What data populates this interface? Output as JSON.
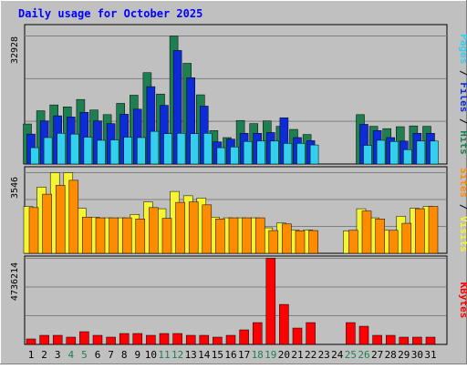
{
  "chart_data": [
    {
      "type": "bar",
      "title": "Daily usage for October 2025",
      "panel": "pages-files-hits",
      "ymax_label": "32928",
      "ylim": [
        0,
        32928
      ],
      "grid": true,
      "legend": "right-vertical",
      "categories": [
        "1",
        "2",
        "3",
        "4",
        "5",
        "6",
        "7",
        "8",
        "9",
        "10",
        "11",
        "12",
        "13",
        "14",
        "15",
        "16",
        "17",
        "18",
        "19",
        "20",
        "21",
        "22",
        "23",
        "24",
        "25",
        "26",
        "27",
        "28",
        "29",
        "30",
        "31"
      ],
      "weekend_days": [
        "4",
        "5",
        "11",
        "12",
        "18",
        "19",
        "25",
        "26"
      ],
      "series": [
        {
          "name": "Hits",
          "color": "#1e7f50",
          "values": [
            10300,
            13700,
            15200,
            14700,
            16600,
            13900,
            12700,
            15600,
            17700,
            23500,
            18000,
            32928,
            25900,
            17800,
            8600,
            6800,
            11200,
            10400,
            11100,
            9700,
            8900,
            7600,
            0,
            0,
            0,
            12700,
            9700,
            9100,
            9600,
            9800,
            9700
          ]
        },
        {
          "name": "Files",
          "color": "#0d2bd6",
          "values": [
            7700,
            11100,
            12400,
            12100,
            13300,
            11100,
            10400,
            12800,
            14100,
            19900,
            15100,
            29200,
            22200,
            14900,
            5700,
            6400,
            7900,
            7900,
            8100,
            11900,
            6800,
            6000,
            0,
            0,
            0,
            10200,
            8600,
            6800,
            5900,
            7900,
            7900
          ]
        },
        {
          "name": "Pages",
          "color": "#33cfef",
          "values": [
            4200,
            6800,
            7900,
            7700,
            6900,
            6100,
            6200,
            6900,
            6800,
            8400,
            7800,
            7900,
            7800,
            7900,
            4200,
            4400,
            5800,
            5900,
            5900,
            5300,
            5300,
            4900,
            0,
            0,
            0,
            4800,
            6100,
            5800,
            3700,
            5900,
            5900
          ]
        }
      ]
    },
    {
      "type": "bar",
      "panel": "visits-sites",
      "ymax_label": "3546",
      "ylim": [
        0,
        3546
      ],
      "grid": true,
      "legend": "right-vertical",
      "series": [
        {
          "name": "Visits",
          "color": "#f5f534",
          "values": [
            2060,
            2910,
            3546,
            3546,
            1980,
            1590,
            1560,
            1560,
            1710,
            2260,
            1960,
            2720,
            2530,
            2430,
            1590,
            1560,
            1560,
            1560,
            1120,
            1330,
            1030,
            1030,
            0,
            0,
            980,
            1960,
            1560,
            1010,
            1630,
            1980,
            2060
          ]
        },
        {
          "name": "Sites",
          "color": "#ff8c00",
          "values": [
            2010,
            2600,
            2990,
            3210,
            1590,
            1560,
            1560,
            1560,
            1510,
            2010,
            1540,
            2240,
            2260,
            2130,
            1510,
            1560,
            1560,
            1560,
            1000,
            1290,
            990,
            1000,
            0,
            0,
            1010,
            1860,
            1510,
            1010,
            1320,
            1960,
            2060
          ]
        }
      ]
    },
    {
      "type": "bar",
      "panel": "kbytes",
      "ymax_label": "4736214",
      "ylim": [
        0,
        4736214
      ],
      "grid": true,
      "legend": "right-vertical",
      "series": [
        {
          "name": "KBytes",
          "color": "#ff0000",
          "values": [
            300000,
            500000,
            500000,
            400000,
            700000,
            500000,
            400000,
            600000,
            600000,
            500000,
            600000,
            600000,
            500000,
            500000,
            400000,
            500000,
            800000,
            1200000,
            4736214,
            2200000,
            900000,
            1200000,
            0,
            0,
            1200000,
            1000000,
            500000,
            500000,
            400000,
            400000,
            400000
          ]
        }
      ]
    }
  ]
}
